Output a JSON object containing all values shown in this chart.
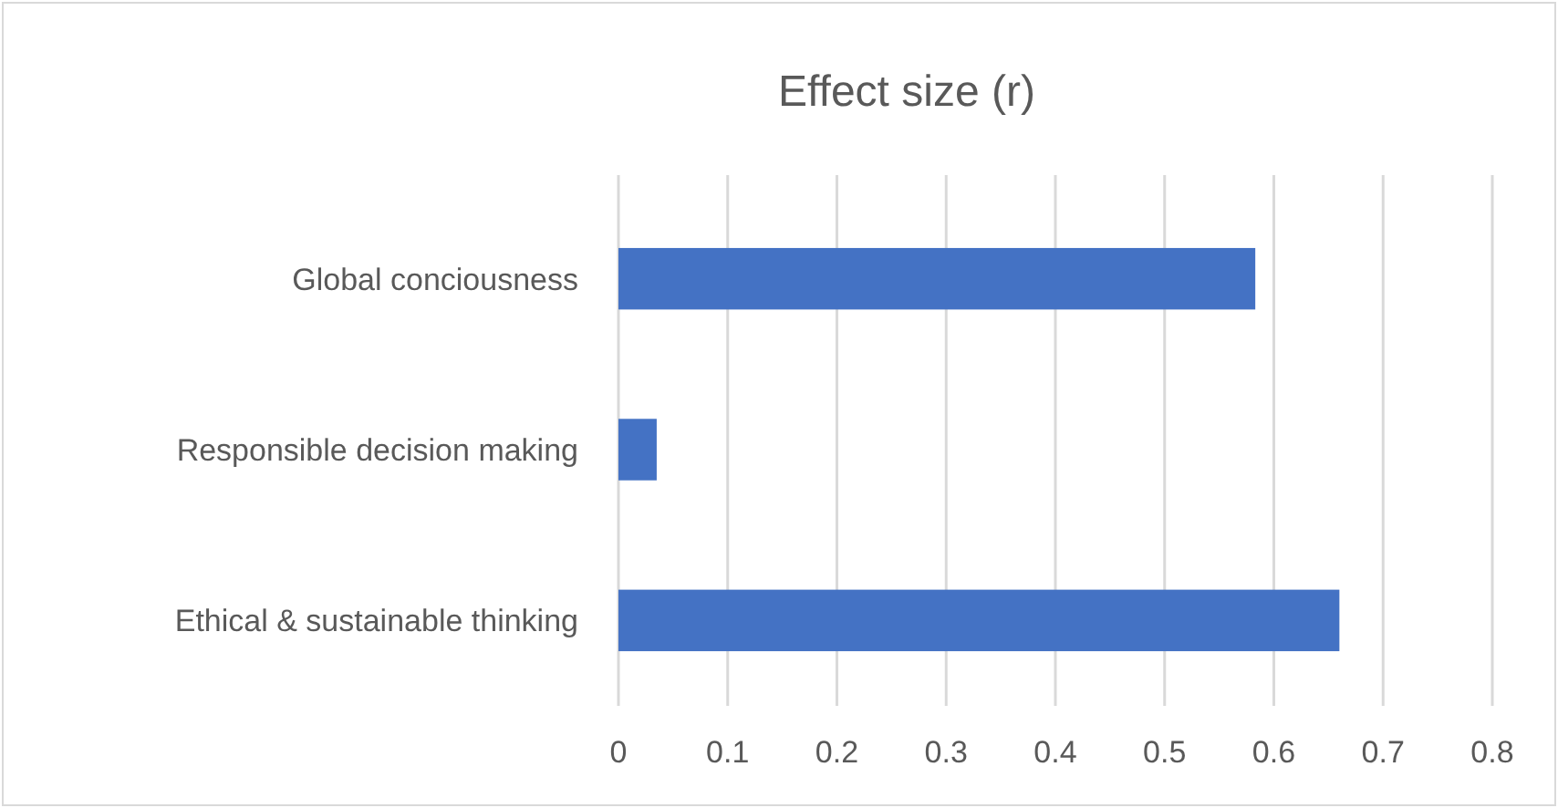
{
  "chart_data": {
    "type": "bar",
    "orientation": "horizontal",
    "title": "Effect size (r)",
    "categories": [
      "Global conciousness",
      "Responsible decision making",
      "Ethical & sustainable thinking"
    ],
    "values": [
      0.583,
      0.035,
      0.66
    ],
    "color": "#4472c4",
    "xlim": [
      0,
      0.8
    ],
    "xticks": [
      0,
      0.1,
      0.2,
      0.3,
      0.4,
      0.5,
      0.6,
      0.7,
      0.8
    ],
    "grid": "x"
  }
}
